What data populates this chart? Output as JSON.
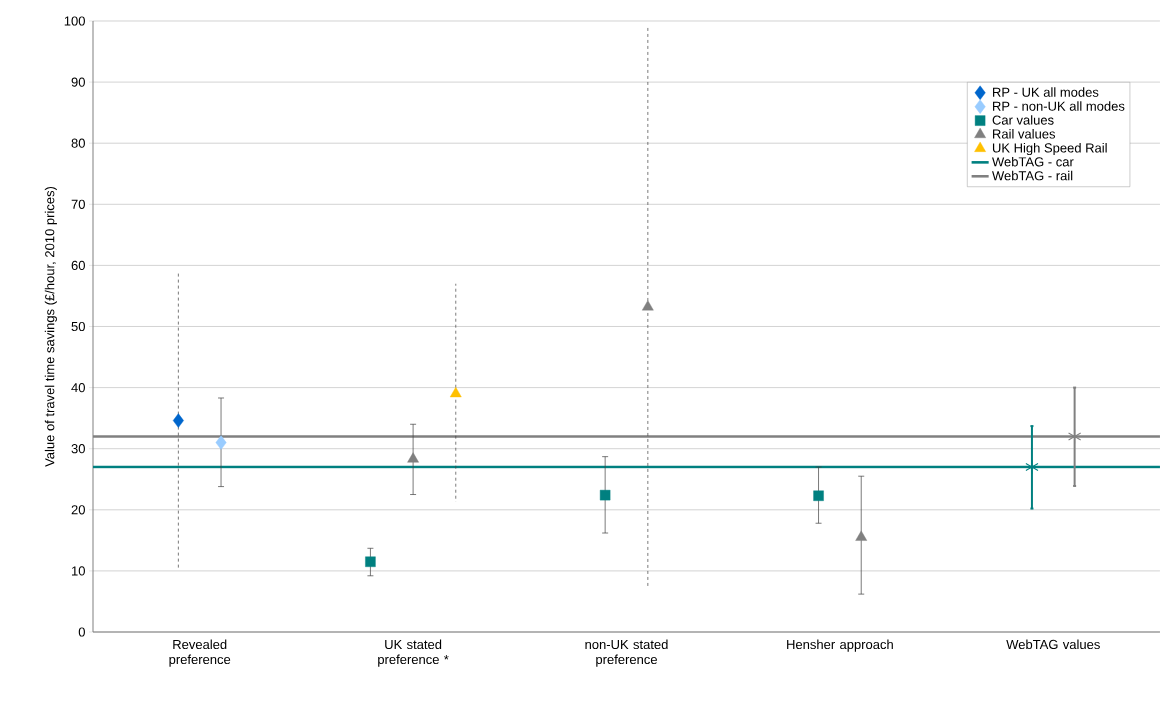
{
  "chart_data": {
    "type": "scatter",
    "ylabel": "Value of travel time savings (£/hour, 2010 prices)",
    "categories": [
      "Revealed preference",
      "UK stated preference *",
      "non-UK stated preference",
      "Hensher approach",
      "WebTAG values"
    ],
    "ylim": [
      0,
      100
    ],
    "yticks": [
      0,
      10,
      20,
      30,
      40,
      50,
      60,
      70,
      80,
      90,
      100
    ],
    "grid": "y",
    "legend": "top right",
    "series": [
      {
        "name": "RP - UK all modes",
        "color": "#0066cc",
        "marker": "diamond",
        "line_style": "dashed",
        "values": [
          34.6,
          null,
          null,
          null,
          null
        ],
        "errors": [
          [
            10.4,
            59
          ],
          null,
          null,
          null,
          null
        ]
      },
      {
        "name": "RP - non-UK all modes",
        "color": "#99ccff",
        "marker": "diamond",
        "values": [
          31.0,
          null,
          null,
          null,
          null
        ],
        "errors": [
          [
            23.8,
            38.3
          ],
          null,
          null,
          null,
          null
        ]
      },
      {
        "name": "Car values",
        "color": "#008080",
        "marker": "square",
        "values": [
          null,
          11.5,
          22.4,
          22.3,
          null
        ],
        "errors": [
          null,
          [
            9.2,
            13.7
          ],
          [
            16.2,
            28.7
          ],
          [
            17.8,
            27
          ],
          null
        ]
      },
      {
        "name": "Rail values",
        "color": "#808080",
        "marker": "triangle",
        "values": [
          null,
          28.3,
          null,
          15.5,
          null
        ],
        "errors": [
          null,
          [
            22.5,
            34
          ],
          null,
          [
            6.2,
            25.5
          ],
          null
        ]
      },
      {
        "name": "UK High Speed Rail",
        "color": "#ffc000",
        "marker": "triangle",
        "line_style": "dashed",
        "values": [
          null,
          39.0,
          null,
          null,
          null
        ],
        "errors": [
          null,
          [
            21.3,
            57
          ],
          null,
          null,
          null
        ]
      },
      {
        "color": "#808080",
        "marker": "triangle",
        "line_style": "dashed",
        "values": [
          null,
          null,
          53.2,
          null,
          null
        ],
        "errors": [
          null,
          null,
          [
            7.5,
            99
          ],
          null,
          null
        ]
      },
      {
        "color": "#008080",
        "marker": "cross",
        "values": [
          null,
          null,
          null,
          null,
          27
        ],
        "errors": [
          null,
          null,
          null,
          null,
          [
            20.2,
            33.7
          ]
        ]
      },
      {
        "color": "#808080",
        "marker": "cross",
        "values": [
          null,
          null,
          null,
          null,
          32
        ],
        "errors": [
          null,
          null,
          null,
          null,
          [
            23.9,
            40
          ]
        ]
      }
    ],
    "ref_lines": [
      {
        "axis": "y",
        "value": 27,
        "label": "WebTAG - car",
        "color": "#008080"
      },
      {
        "axis": "y",
        "value": 32,
        "label": "WebTAG  - rail",
        "color": "#808080"
      }
    ]
  }
}
